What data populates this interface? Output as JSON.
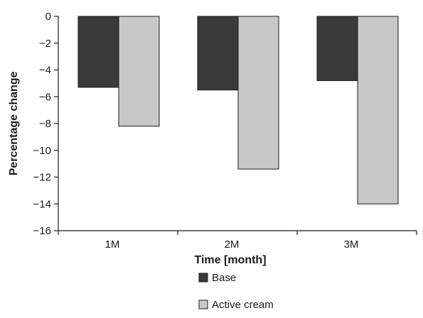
{
  "chart_data": {
    "type": "bar",
    "title": "",
    "xlabel": "Time [month]",
    "ylabel": "Percentage change",
    "categories": [
      "1M",
      "2M",
      "3M"
    ],
    "series": [
      {
        "name": "Base",
        "values": [
          -5.3,
          -5.5,
          -4.8
        ],
        "color": "#3a3a3a"
      },
      {
        "name": "Active cream",
        "values": [
          -8.2,
          -11.4,
          -14.0
        ],
        "color": "#c8c8c8"
      }
    ],
    "ylim": [
      -16,
      0
    ],
    "yticks": [
      0,
      -2,
      -4,
      -6,
      -8,
      -10,
      -12,
      -14,
      -16
    ],
    "ytick_labels": [
      "0",
      "−2",
      "−4",
      "−6",
      "−8",
      "−10",
      "−12",
      "−14",
      "−16"
    ],
    "grid": false,
    "legend_position": "bottom-center"
  }
}
